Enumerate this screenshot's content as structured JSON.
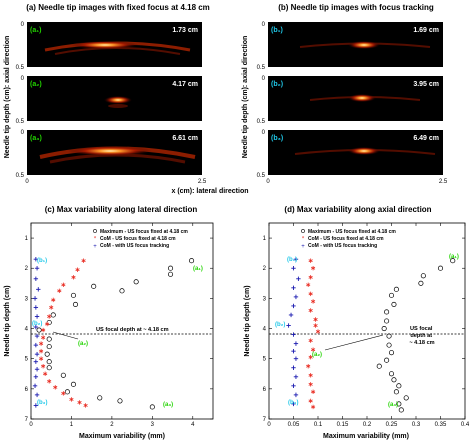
{
  "panel_a": {
    "title": "(a) Needle tip images with fixed focus at 4.18 cm",
    "ylabel": "Needle tip depth (cm): axial direction",
    "frames": [
      {
        "tag": "(a₁)",
        "value": "1.73 cm"
      },
      {
        "tag": "(a₂)",
        "value": "4.17 cm"
      },
      {
        "tag": "(a₃)",
        "value": "6.61 cm"
      }
    ],
    "y_ticks": [
      "0",
      "0.5"
    ],
    "x_ticks": [
      "0",
      "2.5"
    ],
    "xlabel": "x (cm): lateral direction",
    "tag_color": "#22d400"
  },
  "panel_b": {
    "title": "(b) Needle tip images with focus tracking",
    "ylabel": "Needle tip depth (cm): axial direction",
    "frames": [
      {
        "tag": "(b₁)",
        "value": "1.69 cm"
      },
      {
        "tag": "(b₂)",
        "value": "3.95 cm"
      },
      {
        "tag": "(b₃)",
        "value": "6.49 cm"
      }
    ],
    "y_ticks": [
      "0",
      "0.5"
    ],
    "x_ticks": [
      "0",
      "2.5"
    ],
    "tag_color": "#20c8e8"
  },
  "chart_data": [
    {
      "type": "scatter",
      "title": "(c) Max variability along lateral direction",
      "xlabel": "Maximum variability (mm)",
      "ylabel": "Needle tip depth (cm)",
      "xlim": [
        0,
        4.5
      ],
      "ylim": [
        7,
        0.5
      ],
      "x_ticks": [
        0,
        1,
        2,
        3,
        4
      ],
      "y_ticks": [
        1,
        2,
        3,
        4,
        5,
        6,
        7
      ],
      "legend_position": "top-right",
      "series": [
        {
          "name": "Maximum - US focus fixed at 4.18 cm",
          "marker": "circle",
          "points": [
            [
              3.97,
              1.75
            ],
            [
              3.45,
              2.0
            ],
            [
              3.45,
              2.2
            ],
            [
              2.6,
              2.45
            ],
            [
              1.55,
              2.6
            ],
            [
              2.25,
              2.75
            ],
            [
              1.05,
              2.9
            ],
            [
              1.1,
              3.2
            ],
            [
              0.55,
              3.55
            ],
            [
              0.45,
              3.8
            ],
            [
              0.2,
              4.05
            ],
            [
              0.45,
              4.35
            ],
            [
              0.45,
              4.6
            ],
            [
              0.4,
              4.85
            ],
            [
              0.45,
              5.1
            ],
            [
              0.45,
              5.3
            ],
            [
              0.8,
              5.55
            ],
            [
              1.05,
              5.85
            ],
            [
              0.9,
              6.1
            ],
            [
              1.7,
              6.3
            ],
            [
              2.2,
              6.4
            ],
            [
              3.0,
              6.6
            ]
          ]
        },
        {
          "name": "CoM - US focus fixed at 4.18 cm",
          "marker": "asterisk",
          "color": "#e8281e",
          "points": [
            [
              1.3,
              1.75
            ],
            [
              1.15,
              2.05
            ],
            [
              1.05,
              2.3
            ],
            [
              0.8,
              2.55
            ],
            [
              0.7,
              2.75
            ],
            [
              0.55,
              3.05
            ],
            [
              0.5,
              3.3
            ],
            [
              0.45,
              3.6
            ],
            [
              0.4,
              3.85
            ],
            [
              0.3,
              4.05
            ],
            [
              0.3,
              4.3
            ],
            [
              0.25,
              4.5
            ],
            [
              0.25,
              4.75
            ],
            [
              0.25,
              5.0
            ],
            [
              0.3,
              5.25
            ],
            [
              0.35,
              5.5
            ],
            [
              0.45,
              5.75
            ],
            [
              0.6,
              5.95
            ],
            [
              0.8,
              6.15
            ],
            [
              1.0,
              6.35
            ],
            [
              1.2,
              6.45
            ],
            [
              1.35,
              6.55
            ]
          ]
        },
        {
          "name": "CoM - with US focus tracking",
          "marker": "plus",
          "color": "#1a1ab0",
          "points": [
            [
              0.12,
              1.7
            ],
            [
              0.15,
              2.0
            ],
            [
              0.12,
              2.35
            ],
            [
              0.18,
              2.7
            ],
            [
              0.1,
              3.0
            ],
            [
              0.12,
              3.3
            ],
            [
              0.15,
              3.6
            ],
            [
              0.12,
              3.95
            ],
            [
              0.15,
              4.25
            ],
            [
              0.12,
              4.55
            ],
            [
              0.15,
              4.85
            ],
            [
              0.12,
              5.1
            ],
            [
              0.15,
              5.35
            ],
            [
              0.12,
              5.6
            ],
            [
              0.1,
              5.9
            ],
            [
              0.15,
              6.2
            ],
            [
              0.12,
              6.55
            ]
          ]
        }
      ],
      "annotations": [
        {
          "text": "(b₁)",
          "color": "#20c8e8"
        },
        {
          "text": "(a₁)",
          "color": "#22d400"
        },
        {
          "text": "(b₂)",
          "color": "#20c8e8"
        },
        {
          "text": "(a₂)",
          "color": "#22d400"
        },
        {
          "text": "(b₃)",
          "color": "#20c8e8"
        },
        {
          "text": "(a₃)",
          "color": "#22d400"
        }
      ],
      "focal_line": {
        "depth": 4.18,
        "label": "US focal depth at ~ 4.18 cm"
      }
    },
    {
      "type": "scatter",
      "title": "(d) Max variability along axial direction",
      "xlabel": "Maximum variability (mm)",
      "ylabel": "Needle tip depth (cm)",
      "xlim": [
        0,
        0.4
      ],
      "ylim": [
        7,
        0.5
      ],
      "x_ticks": [
        0,
        0.05,
        0.1,
        0.15,
        0.2,
        0.25,
        0.3,
        0.35,
        0.4
      ],
      "y_ticks": [
        1,
        2,
        3,
        4,
        5,
        6,
        7
      ],
      "legend_position": "top-left",
      "series": [
        {
          "name": "Maximum - US focus fixed at 4.18 cm",
          "marker": "circle",
          "points": [
            [
              0.375,
              1.75
            ],
            [
              0.35,
              2.0
            ],
            [
              0.315,
              2.25
            ],
            [
              0.31,
              2.5
            ],
            [
              0.26,
              2.7
            ],
            [
              0.25,
              2.9
            ],
            [
              0.255,
              3.2
            ],
            [
              0.24,
              3.45
            ],
            [
              0.24,
              3.75
            ],
            [
              0.235,
              4.0
            ],
            [
              0.245,
              4.25
            ],
            [
              0.245,
              4.55
            ],
            [
              0.25,
              4.8
            ],
            [
              0.24,
              5.05
            ],
            [
              0.225,
              5.25
            ],
            [
              0.25,
              5.5
            ],
            [
              0.255,
              5.7
            ],
            [
              0.265,
              5.9
            ],
            [
              0.26,
              6.1
            ],
            [
              0.28,
              6.3
            ],
            [
              0.265,
              6.5
            ],
            [
              0.27,
              6.7
            ]
          ]
        },
        {
          "name": "CoM - US focus fixed at 4.18 cm",
          "marker": "asterisk",
          "color": "#e8281e",
          "points": [
            [
              0.085,
              1.75
            ],
            [
              0.09,
              2.0
            ],
            [
              0.085,
              2.3
            ],
            [
              0.08,
              2.55
            ],
            [
              0.085,
              2.85
            ],
            [
              0.09,
              3.1
            ],
            [
              0.085,
              3.4
            ],
            [
              0.095,
              3.7
            ],
            [
              0.095,
              3.9
            ],
            [
              0.1,
              4.1
            ],
            [
              0.085,
              4.4
            ],
            [
              0.09,
              4.7
            ],
            [
              0.085,
              4.95
            ],
            [
              0.08,
              5.25
            ],
            [
              0.085,
              5.55
            ],
            [
              0.085,
              5.85
            ],
            [
              0.09,
              6.1
            ],
            [
              0.085,
              6.4
            ],
            [
              0.09,
              6.6
            ]
          ]
        },
        {
          "name": "CoM - with US focus tracking",
          "marker": "plus",
          "color": "#1a1ab0",
          "points": [
            [
              0.055,
              1.7
            ],
            [
              0.05,
              2.0
            ],
            [
              0.06,
              2.35
            ],
            [
              0.05,
              2.65
            ],
            [
              0.055,
              2.95
            ],
            [
              0.05,
              3.25
            ],
            [
              0.045,
              3.55
            ],
            [
              0.04,
              3.9
            ],
            [
              0.05,
              4.2
            ],
            [
              0.055,
              4.5
            ],
            [
              0.05,
              4.75
            ],
            [
              0.055,
              5.0
            ],
            [
              0.05,
              5.3
            ],
            [
              0.055,
              5.6
            ],
            [
              0.05,
              5.9
            ],
            [
              0.055,
              6.2
            ],
            [
              0.05,
              6.5
            ]
          ]
        }
      ],
      "annotations": [
        {
          "text": "(a₁)",
          "color": "#22d400"
        },
        {
          "text": "(b₁)",
          "color": "#20c8e8"
        },
        {
          "text": "(b₂)",
          "color": "#20c8e8"
        },
        {
          "text": "(a₂)",
          "color": "#22d400"
        },
        {
          "text": "(b₃)",
          "color": "#20c8e8"
        },
        {
          "text": "(a₃)",
          "color": "#22d400"
        }
      ],
      "focal_line": {
        "depth": 4.18,
        "label": "US focal\ndepth at\n~ 4.18 cm"
      }
    }
  ]
}
